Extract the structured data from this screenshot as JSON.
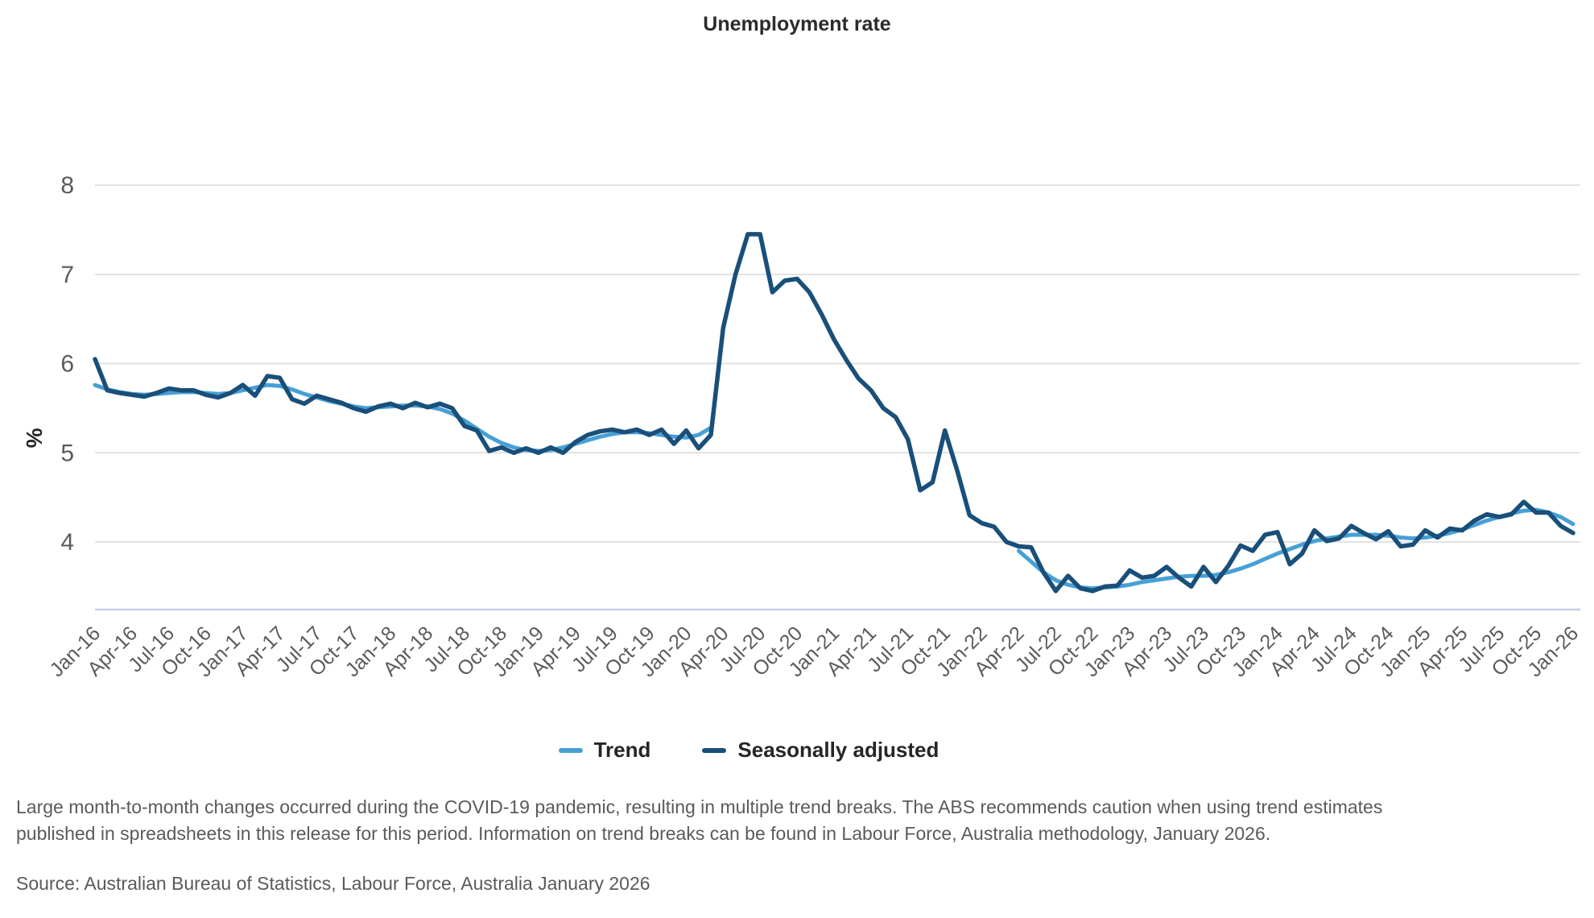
{
  "title": "Unemployment rate",
  "y_axis": {
    "label": "%",
    "ticks": [
      8,
      7,
      6,
      5,
      4
    ]
  },
  "legend": [
    {
      "label": "Trend",
      "color": "#46a0d6"
    },
    {
      "label": "Seasonally adjusted",
      "color": "#194f79"
    }
  ],
  "footnote": {
    "line1": "Large month-to-month changes occurred during the COVID-19 pandemic, resulting in multiple trend breaks. The ABS recommends caution when using trend estimates",
    "line2": "published in spreadsheets in this release for this period. Information on trend breaks can be found in Labour Force, Australia methodology, January 2026."
  },
  "source": "Source: Australian Bureau of Statistics, Labour Force, Australia January 2026",
  "colors": {
    "trend": "#46a0d6",
    "seasonally_adjusted": "#194f79",
    "gridline": "#d9d9d9",
    "axis_line": "#c5cfe6",
    "tick_text": "#5b5b5b",
    "axis_label_text": "#262626"
  },
  "chart_data": {
    "type": "line",
    "title": "Unemployment rate",
    "xlabel": "",
    "ylabel": "%",
    "frequency": "monthly",
    "x_start": "Jan-16",
    "x_end": "Jan-26",
    "x_tick_labels": [
      "Jan-16",
      "Apr-16",
      "Jul-16",
      "Oct-16",
      "Jan-17",
      "Apr-17",
      "Jul-17",
      "Oct-17",
      "Jan-18",
      "Apr-18",
      "Jul-18",
      "Oct-18",
      "Jan-19",
      "Apr-19",
      "Jul-19",
      "Oct-19",
      "Jan-20",
      "Apr-20",
      "Jul-20",
      "Oct-20",
      "Jan-21",
      "Apr-21",
      "Jul-21",
      "Oct-21",
      "Jan-22",
      "Apr-22",
      "Jul-22",
      "Oct-22",
      "Jan-23",
      "Apr-23",
      "Jul-23",
      "Oct-23",
      "Jan-24",
      "Apr-24",
      "Jul-24",
      "Oct-24",
      "Jan-25",
      "Apr-25",
      "Jul-25",
      "Oct-25",
      "Jan-26"
    ],
    "months_per_tick": 3,
    "y_ticks": [
      8,
      7,
      6,
      5,
      4
    ],
    "ylim": [
      3.24,
      8.54
    ],
    "grid": true,
    "legend_position": "bottom",
    "trend_break_note": "Trend series has a break (no values) from Apr-20 to Mar-22",
    "series": [
      {
        "name": "Trend",
        "values": [
          5.76,
          5.71,
          5.68,
          5.66,
          5.65,
          5.66,
          5.67,
          5.68,
          5.68,
          5.67,
          5.66,
          5.67,
          5.7,
          5.73,
          5.76,
          5.75,
          5.71,
          5.66,
          5.62,
          5.58,
          5.55,
          5.52,
          5.5,
          5.51,
          5.52,
          5.53,
          5.53,
          5.52,
          5.49,
          5.44,
          5.36,
          5.27,
          5.18,
          5.11,
          5.06,
          5.03,
          5.02,
          5.03,
          5.06,
          5.1,
          5.14,
          5.18,
          5.21,
          5.23,
          5.23,
          5.22,
          5.2,
          5.18,
          5.17,
          5.2,
          5.28,
          null,
          null,
          null,
          null,
          null,
          null,
          null,
          null,
          null,
          null,
          null,
          null,
          null,
          null,
          null,
          null,
          null,
          null,
          null,
          null,
          null,
          null,
          null,
          null,
          3.9,
          3.78,
          3.66,
          3.57,
          3.52,
          3.49,
          3.48,
          3.49,
          3.5,
          3.52,
          3.55,
          3.57,
          3.59,
          3.61,
          3.62,
          3.62,
          3.63,
          3.66,
          3.7,
          3.75,
          3.81,
          3.87,
          3.92,
          3.97,
          4.01,
          4.04,
          4.06,
          4.08,
          4.08,
          4.08,
          4.07,
          4.05,
          4.04,
          4.05,
          4.07,
          4.1,
          4.14,
          4.19,
          4.24,
          4.28,
          4.32,
          4.35,
          4.36,
          4.33,
          4.28,
          4.2
        ]
      },
      {
        "name": "Seasonally adjusted",
        "values": [
          6.05,
          5.7,
          5.67,
          5.65,
          5.63,
          5.67,
          5.72,
          5.7,
          5.7,
          5.65,
          5.62,
          5.67,
          5.76,
          5.64,
          5.86,
          5.84,
          5.6,
          5.55,
          5.64,
          5.6,
          5.56,
          5.5,
          5.46,
          5.52,
          5.55,
          5.5,
          5.56,
          5.51,
          5.55,
          5.5,
          5.3,
          5.25,
          5.02,
          5.06,
          5.0,
          5.05,
          5.0,
          5.06,
          5.0,
          5.12,
          5.2,
          5.24,
          5.26,
          5.23,
          5.26,
          5.2,
          5.26,
          5.1,
          5.25,
          5.05,
          5.2,
          6.4,
          7.0,
          7.45,
          7.45,
          6.8,
          6.93,
          6.95,
          6.8,
          6.55,
          6.27,
          6.04,
          5.83,
          5.7,
          5.5,
          5.4,
          5.15,
          4.58,
          4.67,
          5.25,
          4.8,
          4.3,
          4.21,
          4.17,
          4.0,
          3.95,
          3.94,
          3.66,
          3.45,
          3.62,
          3.48,
          3.45,
          3.5,
          3.51,
          3.68,
          3.6,
          3.62,
          3.72,
          3.6,
          3.5,
          3.72,
          3.55,
          3.73,
          3.96,
          3.9,
          4.08,
          4.11,
          3.75,
          3.87,
          4.13,
          4.01,
          4.04,
          4.18,
          4.1,
          4.03,
          4.12,
          3.95,
          3.97,
          4.13,
          4.05,
          4.15,
          4.13,
          4.24,
          4.31,
          4.28,
          4.31,
          4.45,
          4.33,
          4.33,
          4.18,
          4.1
        ]
      }
    ]
  }
}
